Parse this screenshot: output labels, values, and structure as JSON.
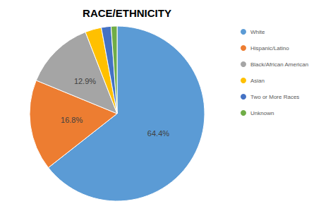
{
  "chart_data": {
    "type": "pie",
    "title": "RACE/ETHNICITY",
    "categories": [
      "White",
      "Hispanic/Latino",
      "Black/African American",
      "Asian",
      "Two or More Races",
      "Unknown"
    ],
    "values": [
      64.4,
      16.8,
      12.9,
      3.0,
      1.8,
      1.1
    ],
    "value_labels": [
      "64.4%",
      "16.8%",
      "12.9%",
      null,
      null,
      null
    ],
    "colors": [
      "#5b9bd5",
      "#ed7d31",
      "#a5a5a5",
      "#ffc000",
      "#4472c4",
      "#70ad47"
    ],
    "data_labels": true,
    "legend": "right"
  }
}
